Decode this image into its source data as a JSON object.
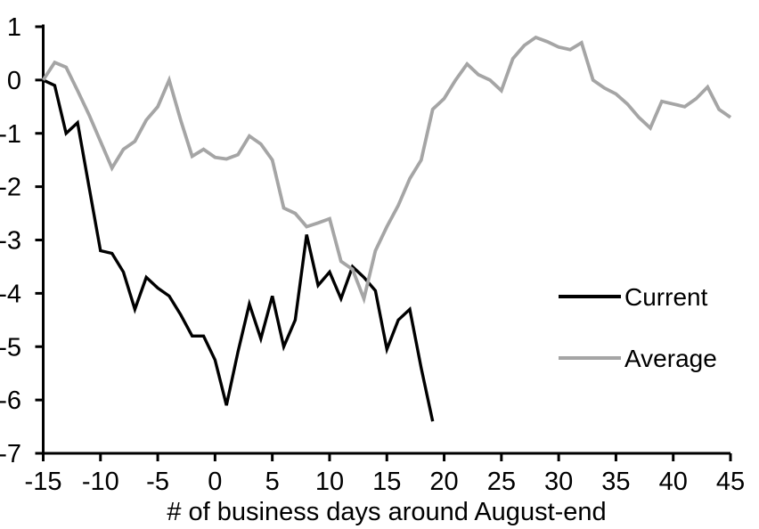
{
  "chart_data": {
    "type": "line",
    "title": "",
    "xlabel": "# of business days around August-end",
    "ylabel": "",
    "xlim": [
      -15,
      45
    ],
    "ylim": [
      -7,
      1
    ],
    "x_ticks": [
      -15,
      -10,
      -5,
      0,
      5,
      10,
      15,
      20,
      25,
      30,
      35,
      40,
      45
    ],
    "y_ticks": [
      1,
      0,
      -1,
      -2,
      -3,
      -4,
      -5,
      -6,
      -7
    ],
    "grid": false,
    "legend_position": "middle-right",
    "axis_color": "#000000",
    "series": [
      {
        "name": "Current",
        "color": "#000000",
        "x_start": -15,
        "x_step": 1,
        "values": [
          0,
          -0.1,
          -1.0,
          -0.8,
          -2.0,
          -3.2,
          -3.25,
          -3.6,
          -4.3,
          -3.7,
          -3.9,
          -4.05,
          -4.4,
          -4.8,
          -4.8,
          -5.25,
          -6.1,
          -5.1,
          -4.2,
          -4.85,
          -4.05,
          -5.0,
          -4.5,
          -2.9,
          -3.85,
          -3.6,
          -4.1,
          -3.5,
          -3.7,
          -3.95,
          -5.05,
          -4.5,
          -4.3,
          -5.4,
          -6.4
        ]
      },
      {
        "name": "Average",
        "color": "#A5A5A5",
        "x_start": -15,
        "x_step": 1,
        "values": [
          0.0,
          0.33,
          0.24,
          -0.2,
          -0.65,
          -1.15,
          -1.65,
          -1.3,
          -1.15,
          -0.75,
          -0.5,
          0.0,
          -0.75,
          -1.43,
          -1.3,
          -1.45,
          -1.48,
          -1.4,
          -1.05,
          -1.2,
          -1.5,
          -2.4,
          -2.5,
          -2.75,
          -2.68,
          -2.6,
          -3.4,
          -3.55,
          -4.1,
          -3.2,
          -2.75,
          -2.35,
          -1.85,
          -1.5,
          -0.55,
          -0.35,
          0.0,
          0.3,
          0.1,
          0.0,
          -0.2,
          0.4,
          0.65,
          0.8,
          0.72,
          0.62,
          0.57,
          0.7,
          0.0,
          -0.15,
          -0.26,
          -0.45,
          -0.7,
          -0.9,
          -0.4,
          -0.45,
          -0.5,
          -0.35,
          -0.13,
          -0.55,
          -0.7
        ]
      }
    ]
  }
}
